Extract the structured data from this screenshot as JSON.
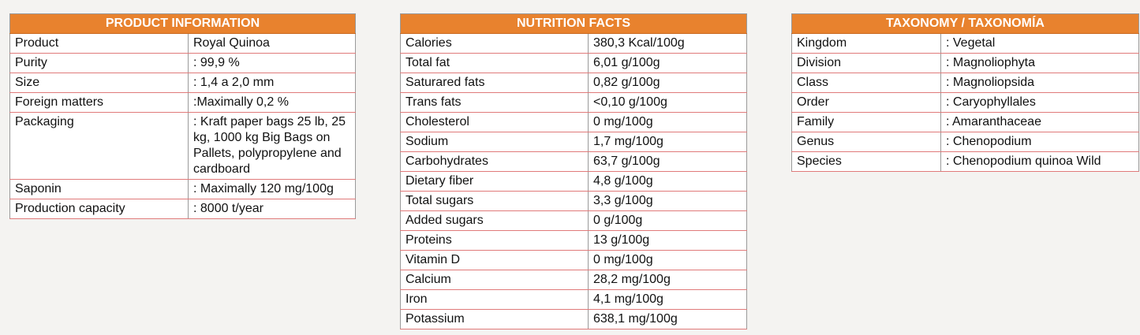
{
  "tables": [
    {
      "title": "PRODUCT INFORMATION",
      "rows": [
        [
          "Product",
          "Royal Quinoa"
        ],
        [
          "Purity",
          ": 99,9 %"
        ],
        [
          "Size",
          ": 1,4 a 2,0 mm"
        ],
        [
          "Foreign matters",
          ":Maximally 0,2 %"
        ],
        [
          "Packaging",
          ": Kraft paper bags 25 lb, 25 kg, 1000 kg Big Bags on Pallets, polypropylene and cardboard"
        ],
        [
          "Saponin",
          ": Maximally 120 mg/100g"
        ],
        [
          "Production capacity",
          ": 8000 t/year"
        ]
      ]
    },
    {
      "title": "NUTRITION FACTS",
      "rows": [
        [
          "Calories",
          "380,3 Kcal/100g"
        ],
        [
          "Total fat",
          "6,01 g/100g"
        ],
        [
          "Saturared fats",
          "0,82 g/100g"
        ],
        [
          "Trans fats",
          "<0,10 g/100g"
        ],
        [
          "Cholesterol",
          "0 mg/100g"
        ],
        [
          "Sodium",
          "1,7 mg/100g"
        ],
        [
          "Carbohydrates",
          "63,7 g/100g"
        ],
        [
          "Dietary fiber",
          "4,8 g/100g"
        ],
        [
          "Total sugars",
          "3,3 g/100g"
        ],
        [
          "Added sugars",
          "0 g/100g"
        ],
        [
          "Proteins",
          "13 g/100g"
        ],
        [
          "Vitamin D",
          "0 mg/100g"
        ],
        [
          "Calcium",
          "28,2 mg/100g"
        ],
        [
          "Iron",
          "4,1 mg/100g"
        ],
        [
          "Potassium",
          "638,1 mg/100g"
        ]
      ]
    },
    {
      "title": "TAXONOMY / TAXONOMÍA",
      "rows": [
        [
          "Kingdom",
          ": Vegetal"
        ],
        [
          "Division",
          ": Magnoliophyta"
        ],
        [
          "Class",
          ": Magnoliopsida"
        ],
        [
          "Order",
          ": Caryophyllales"
        ],
        [
          "Family",
          ": Amaranthaceae"
        ],
        [
          "Genus",
          ": Chenopodium"
        ],
        [
          "Species",
          ": Chenopodium quinoa Wild"
        ]
      ]
    }
  ]
}
